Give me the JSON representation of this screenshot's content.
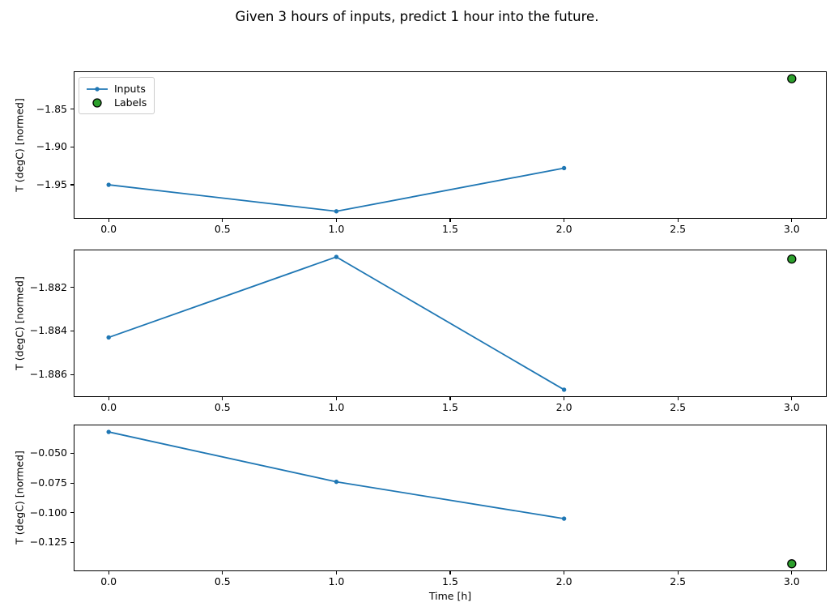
{
  "title": "Given 3 hours of inputs, predict 1 hour into the future.",
  "xlabel": "Time [h]",
  "legend": {
    "inputs": "Inputs",
    "labels": "Labels"
  },
  "colors": {
    "inputs": "#1f77b4",
    "labels": "#2ca02c",
    "edge": "#000000"
  },
  "chart_data": [
    {
      "type": "line",
      "ylabel": "T (degC) [normed]",
      "legend_visible": true,
      "series": [
        {
          "name": "Inputs",
          "style": "line+marker",
          "x": [
            0,
            1,
            2
          ],
          "y": [
            -1.95,
            -1.985,
            -1.928
          ]
        },
        {
          "name": "Labels",
          "style": "marker",
          "x": [
            3
          ],
          "y": [
            -1.81
          ]
        }
      ],
      "xlim": [
        -0.15,
        3.15
      ],
      "ylim": [
        -1.9938,
        -1.8013
      ],
      "xticks": [
        0.0,
        0.5,
        1.0,
        1.5,
        2.0,
        2.5,
        3.0
      ],
      "xtick_labels": [
        "0.0",
        "0.5",
        "1.0",
        "1.5",
        "2.0",
        "2.5",
        "3.0"
      ],
      "yticks": [
        -1.85,
        -1.9,
        -1.95
      ],
      "ytick_labels": [
        "−1.85",
        "−1.90",
        "−1.95"
      ]
    },
    {
      "type": "line",
      "ylabel": "T (degC) [normed]",
      "legend_visible": false,
      "series": [
        {
          "name": "Inputs",
          "style": "line+marker",
          "x": [
            0,
            1,
            2
          ],
          "y": [
            -1.8843,
            -1.8806,
            -1.8867
          ]
        },
        {
          "name": "Labels",
          "style": "marker",
          "x": [
            3
          ],
          "y": [
            -1.8807
          ]
        }
      ],
      "xlim": [
        -0.15,
        3.15
      ],
      "ylim": [
        -1.887,
        -1.8803
      ],
      "xticks": [
        0.0,
        0.5,
        1.0,
        1.5,
        2.0,
        2.5,
        3.0
      ],
      "xtick_labels": [
        "0.0",
        "0.5",
        "1.0",
        "1.5",
        "2.0",
        "2.5",
        "3.0"
      ],
      "yticks": [
        -1.882,
        -1.884,
        -1.886
      ],
      "ytick_labels": [
        "−1.882",
        "−1.884",
        "−1.886"
      ]
    },
    {
      "type": "line",
      "ylabel": "T (degC) [normed]",
      "legend_visible": false,
      "series": [
        {
          "name": "Inputs",
          "style": "line+marker",
          "x": [
            0,
            1,
            2
          ],
          "y": [
            -0.032,
            -0.074,
            -0.105
          ]
        },
        {
          "name": "Labels",
          "style": "marker",
          "x": [
            3
          ],
          "y": [
            -0.143
          ]
        }
      ],
      "xlim": [
        -0.15,
        3.15
      ],
      "ylim": [
        -0.1486,
        -0.0265
      ],
      "xticks": [
        0.0,
        0.5,
        1.0,
        1.5,
        2.0,
        2.5,
        3.0
      ],
      "xtick_labels": [
        "0.0",
        "0.5",
        "1.0",
        "1.5",
        "2.0",
        "2.5",
        "3.0"
      ],
      "yticks": [
        -0.05,
        -0.075,
        -0.1,
        -0.125
      ],
      "ytick_labels": [
        "−0.050",
        "−0.075",
        "−0.100",
        "−0.125"
      ]
    }
  ]
}
